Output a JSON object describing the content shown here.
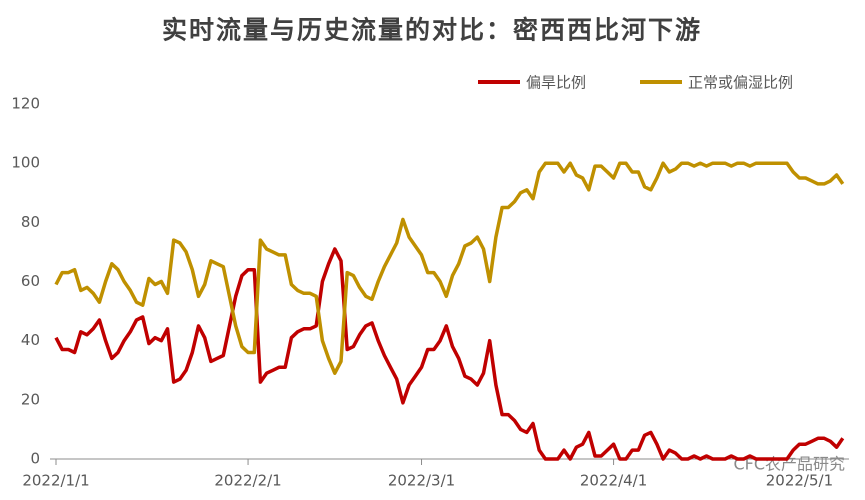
{
  "chart_data": {
    "type": "line",
    "title": "实时流量与历史流量的对比：密西西比河下游",
    "watermark": "CFC农产品研究",
    "x": [
      "2022/1/1",
      "2022/1/2",
      "2022/1/3",
      "2022/1/4",
      "2022/1/5",
      "2022/1/6",
      "2022/1/7",
      "2022/1/8",
      "2022/1/9",
      "2022/1/10",
      "2022/1/11",
      "2022/1/12",
      "2022/1/13",
      "2022/1/14",
      "2022/1/15",
      "2022/1/16",
      "2022/1/17",
      "2022/1/18",
      "2022/1/19",
      "2022/1/20",
      "2022/1/21",
      "2022/1/22",
      "2022/1/23",
      "2022/1/24",
      "2022/1/25",
      "2022/1/26",
      "2022/1/27",
      "2022/1/28",
      "2022/1/29",
      "2022/1/30",
      "2022/1/31",
      "2022/2/1",
      "2022/2/2",
      "2022/2/3",
      "2022/2/4",
      "2022/2/5",
      "2022/2/6",
      "2022/2/7",
      "2022/2/8",
      "2022/2/9",
      "2022/2/10",
      "2022/2/11",
      "2022/2/12",
      "2022/2/13",
      "2022/2/14",
      "2022/2/15",
      "2022/2/16",
      "2022/2/17",
      "2022/2/18",
      "2022/2/19",
      "2022/2/20",
      "2022/2/21",
      "2022/2/22",
      "2022/2/23",
      "2022/2/24",
      "2022/2/25",
      "2022/2/26",
      "2022/2/27",
      "2022/2/28",
      "2022/3/1",
      "2022/3/2",
      "2022/3/3",
      "2022/3/4",
      "2022/3/5",
      "2022/3/6",
      "2022/3/7",
      "2022/3/8",
      "2022/3/9",
      "2022/3/10",
      "2022/3/11",
      "2022/3/12",
      "2022/3/13",
      "2022/3/14",
      "2022/3/15",
      "2022/3/16",
      "2022/3/17",
      "2022/3/18",
      "2022/3/19",
      "2022/3/20",
      "2022/3/21",
      "2022/3/22",
      "2022/3/23",
      "2022/3/24",
      "2022/3/25",
      "2022/3/26",
      "2022/3/27",
      "2022/3/28",
      "2022/3/29",
      "2022/3/30",
      "2022/3/31",
      "2022/4/1",
      "2022/4/2",
      "2022/4/3",
      "2022/4/4",
      "2022/4/5",
      "2022/4/6",
      "2022/4/7",
      "2022/4/8",
      "2022/4/9",
      "2022/4/10",
      "2022/4/11",
      "2022/4/12",
      "2022/4/13",
      "2022/4/14",
      "2022/4/15",
      "2022/4/16",
      "2022/4/17",
      "2022/4/18",
      "2022/4/19",
      "2022/4/20",
      "2022/4/21",
      "2022/4/22",
      "2022/4/23",
      "2022/4/24",
      "2022/4/25",
      "2022/4/26",
      "2022/4/27",
      "2022/4/28",
      "2022/4/29",
      "2022/4/30",
      "2022/5/1",
      "2022/5/2",
      "2022/5/3",
      "2022/5/4",
      "2022/5/5",
      "2022/5/6",
      "2022/5/7",
      "2022/5/8"
    ],
    "series": [
      {
        "name": "偏旱比例",
        "color": "#c00000",
        "values": [
          41,
          37,
          37,
          36,
          43,
          42,
          44,
          47,
          40,
          34,
          36,
          40,
          43,
          47,
          48,
          39,
          41,
          40,
          44,
          26,
          27,
          30,
          36,
          45,
          41,
          33,
          34,
          35,
          45,
          55,
          62,
          64,
          64,
          26,
          29,
          30,
          31,
          31,
          41,
          43,
          44,
          44,
          45,
          60,
          66,
          71,
          67,
          37,
          38,
          42,
          45,
          46,
          40,
          35,
          31,
          27,
          19,
          25,
          28,
          31,
          37,
          37,
          40,
          45,
          38,
          34,
          28,
          27,
          25,
          29,
          40,
          25,
          15,
          15,
          13,
          10,
          9,
          12,
          3,
          0,
          0,
          0,
          3,
          0,
          4,
          5,
          9,
          1,
          1,
          3,
          5,
          0,
          0,
          3,
          3,
          8,
          9,
          5,
          0,
          3,
          2,
          0,
          0,
          1,
          0,
          1,
          0,
          0,
          0,
          1,
          0,
          0,
          1,
          0,
          0,
          0,
          0,
          0,
          0,
          3,
          5,
          5,
          6,
          7,
          7,
          6,
          4,
          7
        ]
      },
      {
        "name": "正常或偏湿比例",
        "color": "#bf9000",
        "values": [
          59,
          63,
          63,
          64,
          57,
          58,
          56,
          53,
          60,
          66,
          64,
          60,
          57,
          53,
          52,
          61,
          59,
          60,
          56,
          74,
          73,
          70,
          64,
          55,
          59,
          67,
          66,
          65,
          55,
          45,
          38,
          36,
          36,
          74,
          71,
          70,
          69,
          69,
          59,
          57,
          56,
          56,
          55,
          40,
          34,
          29,
          33,
          63,
          62,
          58,
          55,
          54,
          60,
          65,
          69,
          73,
          81,
          75,
          72,
          69,
          63,
          63,
          60,
          55,
          62,
          66,
          72,
          73,
          75,
          71,
          60,
          75,
          85,
          85,
          87,
          90,
          91,
          88,
          97,
          100,
          100,
          100,
          97,
          100,
          96,
          95,
          91,
          99,
          99,
          97,
          95,
          100,
          100,
          97,
          97,
          92,
          91,
          95,
          100,
          97,
          98,
          100,
          100,
          99,
          100,
          99,
          100,
          100,
          100,
          99,
          100,
          100,
          99,
          100,
          100,
          100,
          100,
          100,
          100,
          97,
          95,
          95,
          94,
          93,
          93,
          94,
          96,
          93
        ]
      }
    ],
    "xlim": [
      "2022/1/1",
      "2022/5/9"
    ],
    "xticks": [
      "2022/1/1",
      "2022/2/1",
      "2022/3/1",
      "2022/4/1",
      "2022/5/1"
    ],
    "ylim": [
      0,
      120
    ],
    "yticks": [
      0,
      20,
      40,
      60,
      80,
      100,
      120
    ],
    "grid": false,
    "legend": "top-right"
  }
}
